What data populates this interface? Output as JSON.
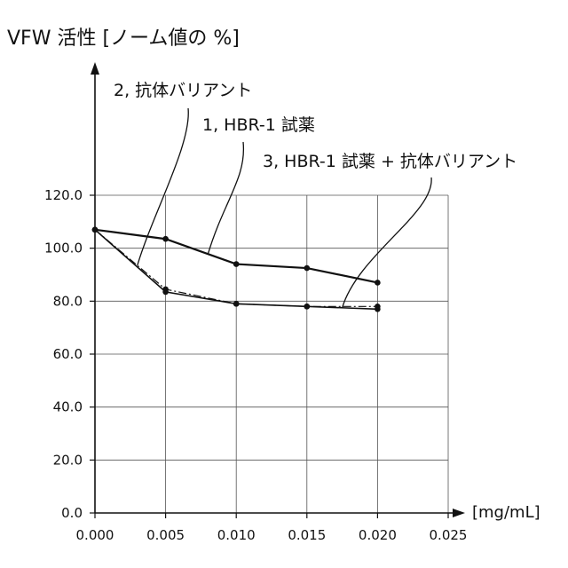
{
  "chart_data": {
    "type": "line",
    "title": "",
    "ylabel": "VFW 活性 [ノーム値の %]",
    "xlabel": "[mg/mL]",
    "x": [
      0.0,
      0.005,
      0.01,
      0.015,
      0.02
    ],
    "xlim": [
      0.0,
      0.025
    ],
    "ylim": [
      0.0,
      120.0
    ],
    "x_ticks": [
      "0.000",
      "0.005",
      "0.010",
      "0.015",
      "0.020",
      "0.025"
    ],
    "y_ticks": [
      "0.0",
      "20.0",
      "40.0",
      "60.0",
      "80.0",
      "100.0",
      "120.0"
    ],
    "grid": true,
    "legend": "none",
    "series": [
      {
        "name": "1, HBR-1 試薬",
        "values": [
          107.0,
          103.5,
          94.0,
          92.5,
          87.0
        ],
        "style": "solid",
        "color": "#111111"
      },
      {
        "name": "2, 抗体バリアント",
        "values": [
          107.0,
          84.5,
          79.0,
          78.0,
          78.0
        ],
        "style": "dashdot",
        "color": "#111111"
      },
      {
        "name": "3, HBR-1 試薬 + 抗体バリアント",
        "values": [
          107.0,
          83.5,
          79.0,
          78.0,
          77.0
        ],
        "style": "solid",
        "color": "#111111"
      }
    ],
    "annotations": [
      {
        "text": "2, 抗体バリアント",
        "series": 1,
        "x": 0.003
      },
      {
        "text": "1, HBR-1 試薬",
        "series": 0,
        "x": 0.008
      },
      {
        "text": "3, HBR-1 試薬 + 抗体バリアント",
        "series": 2,
        "x": 0.0175
      }
    ]
  }
}
